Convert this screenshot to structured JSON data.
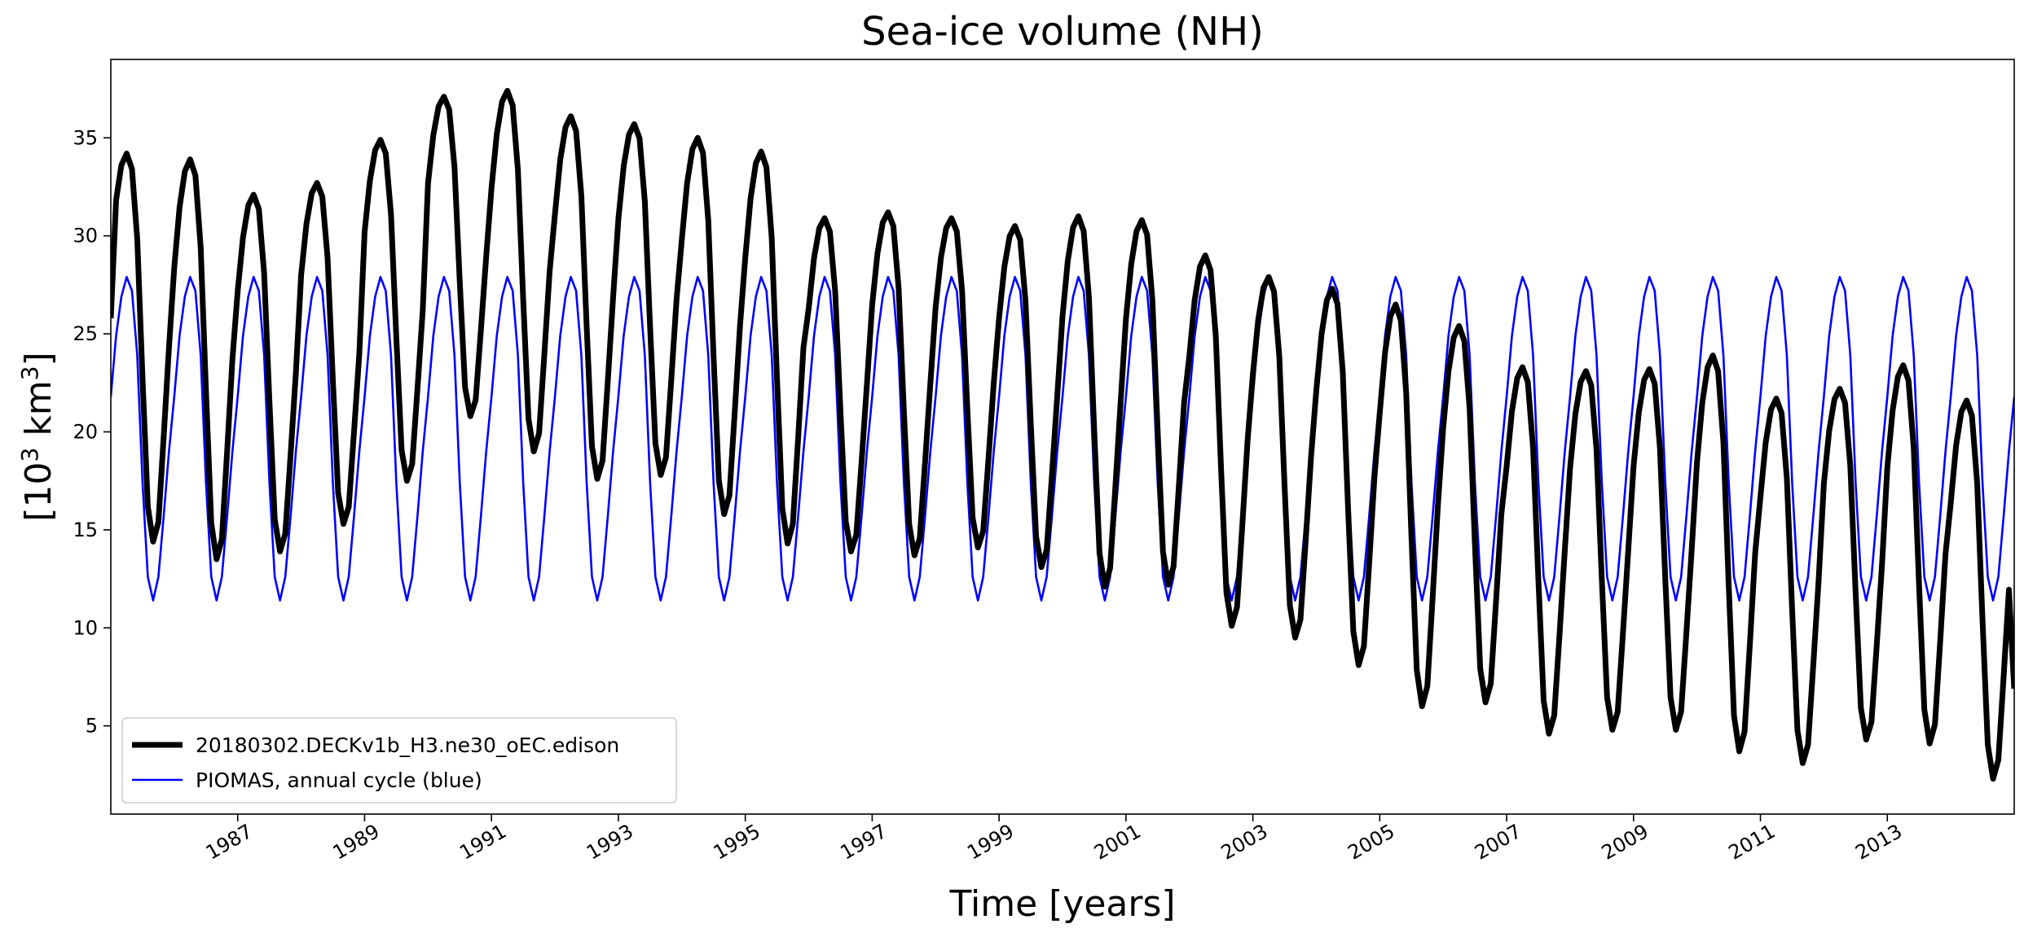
{
  "chart_data": {
    "type": "line",
    "title": "Sea-ice volume (NH)",
    "xlabel": "Time [years]",
    "ylabel": "[10³ km³]",
    "ylabel_base": "[10",
    "ylabel_exp1": "3",
    "ylabel_mid": " km",
    "ylabel_exp2": "3",
    "ylabel_end": "]",
    "xlim": [
      1985.0,
      2015.0
    ],
    "ylim": [
      0.5,
      39.0
    ],
    "xticks": [
      1987,
      1989,
      1991,
      1993,
      1995,
      1997,
      1999,
      2001,
      2003,
      2005,
      2007,
      2009,
      2011,
      2013
    ],
    "xtick_labels": [
      "1987",
      "1989",
      "1991",
      "1993",
      "1995",
      "1997",
      "1999",
      "2001",
      "2003",
      "2005",
      "2007",
      "2009",
      "2011",
      "2013"
    ],
    "yticks": [
      5,
      10,
      15,
      20,
      25,
      30,
      35
    ],
    "ytick_labels": [
      "5",
      "10",
      "15",
      "20",
      "25",
      "30",
      "35"
    ],
    "grid": false,
    "legend_position": "lower-left",
    "series": [
      {
        "name": "20180302.DECKv1b_H3.ne30_oEC.edison",
        "color": "#000000",
        "style": "thick",
        "annual_max": [
          34.2,
          33.9,
          32.1,
          32.7,
          34.9,
          37.1,
          37.4,
          36.1,
          35.7,
          35.0,
          34.3,
          30.9,
          31.2,
          30.9,
          30.5,
          31.0,
          30.8,
          29.0,
          27.9,
          27.3,
          26.5,
          25.4,
          23.3,
          23.1,
          23.2,
          23.9,
          21.7,
          22.2,
          23.4,
          21.6
        ],
        "annual_min": [
          14.4,
          13.5,
          13.9,
          15.3,
          17.5,
          20.8,
          19.0,
          17.6,
          17.8,
          15.8,
          14.3,
          13.9,
          13.7,
          14.1,
          13.1,
          12.1,
          12.2,
          10.1,
          9.5,
          8.1,
          6.0,
          6.2,
          4.6,
          4.8,
          4.8,
          3.7,
          3.1,
          4.3,
          4.1,
          2.3
        ],
        "first_value": 25.8,
        "last_value": 6.9
      },
      {
        "name": "PIOMAS, annual cycle (blue)",
        "color": "#0000ff",
        "style": "thin",
        "monthly_cycle": [
          21.8,
          24.9,
          26.9,
          27.9,
          27.2,
          23.9,
          17.4,
          12.6,
          11.4,
          12.6,
          15.7,
          19.0
        ]
      }
    ]
  }
}
